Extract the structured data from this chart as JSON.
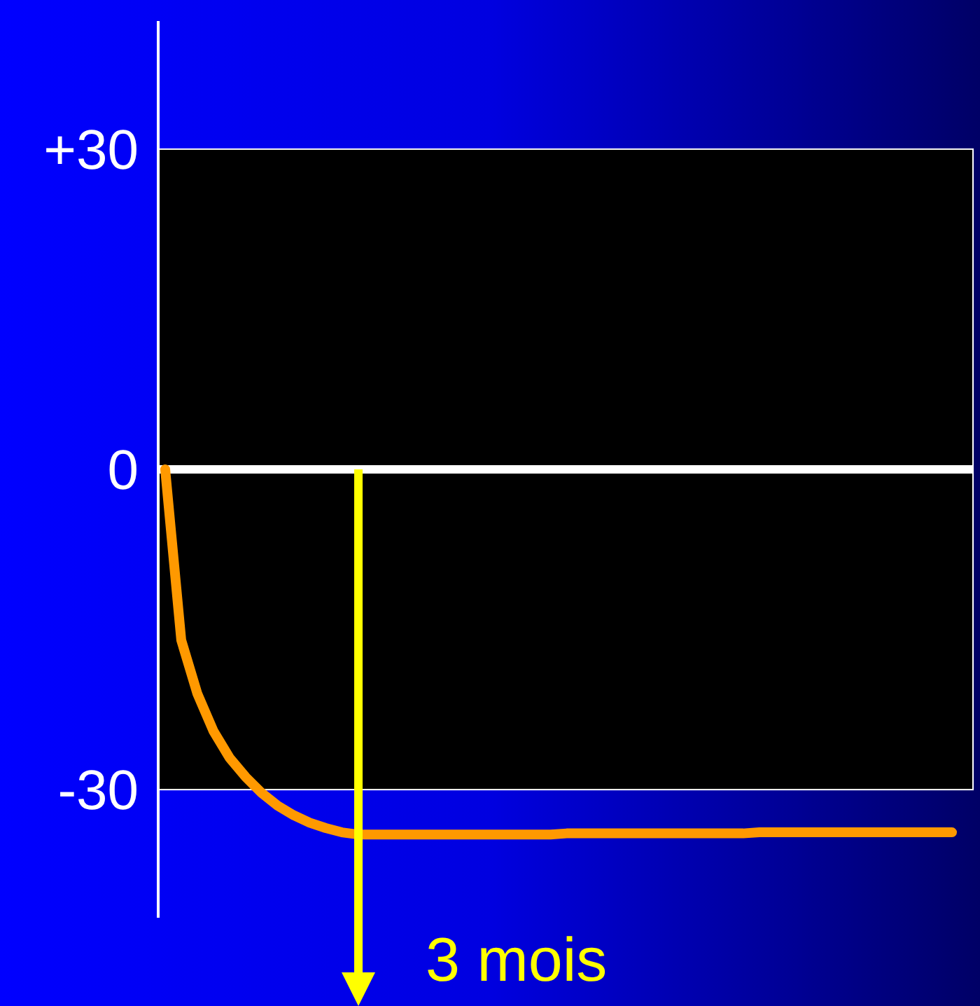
{
  "chart_data": {
    "type": "line",
    "categories": [
      null,
      null,
      null,
      null,
      null,
      null,
      null,
      null,
      null,
      null,
      null,
      null,
      null,
      null,
      null,
      null,
      null,
      null,
      null,
      null,
      null,
      null,
      null,
      null,
      null,
      null,
      null,
      null,
      null,
      null,
      null,
      null,
      null,
      null,
      null,
      null,
      null,
      null,
      null,
      null,
      null,
      null,
      null,
      null,
      null,
      null,
      null,
      null,
      null,
      null
    ],
    "series": [
      {
        "color": "#ff9900",
        "values": [
          0,
          -16,
          -21,
          -24.5,
          -27,
          -28.8,
          -30.3,
          -31.5,
          -32.4,
          -33.1,
          -33.6,
          -34,
          -34.2,
          -34.2,
          -34.2,
          -34.2,
          -34.2,
          -34.2,
          -34.2,
          -34.2,
          -34.2,
          -34.2,
          -34.2,
          -34.2,
          -34.2,
          -34.1,
          -34.1,
          -34.1,
          -34.1,
          -34.1,
          -34.1,
          -34.1,
          -34.1,
          -34.1,
          -34.1,
          -34.1,
          -34.1,
          -34,
          -34,
          -34,
          -34,
          -34,
          -34,
          -34,
          -34,
          -34,
          -34,
          -34,
          -34,
          -34
        ]
      }
    ],
    "ylim": [
      -42,
      42
    ],
    "yticks": [
      {
        "value": 30,
        "label": "+30"
      },
      0,
      -30
    ],
    "tick_labels": "y",
    "grid": false,
    "marker": "none",
    "line_style": "solid",
    "bands": [
      {
        "axis": "y",
        "from": -30,
        "to": 30,
        "color": "#000000"
      }
    ],
    "ref_lines": [
      {
        "axis": "y",
        "value": 0,
        "color": "#ffffff"
      }
    ],
    "annotations": [
      "3 mois"
    ]
  }
}
